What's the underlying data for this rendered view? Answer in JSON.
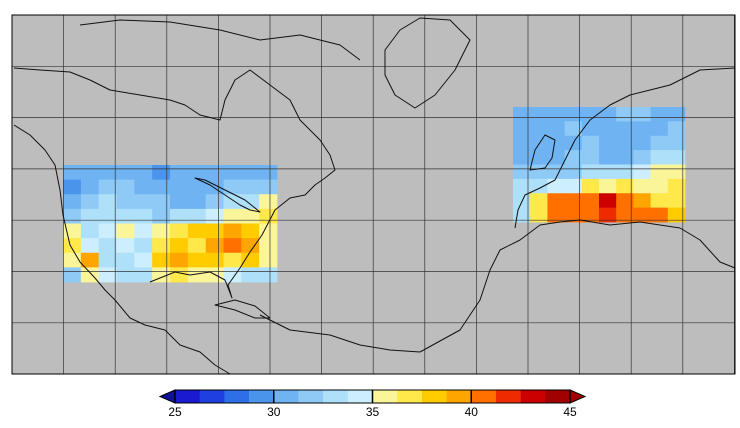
{
  "map": {
    "type": "gridded-map",
    "colorbar": {
      "range": [
        25,
        45
      ],
      "ticks": [
        25,
        30,
        35,
        40,
        45
      ],
      "colors": [
        "#1a1ad0",
        "#1f3fe0",
        "#2e6ee6",
        "#4a94ec",
        "#6fb3f2",
        "#8fcaf6",
        "#aee0fa",
        "#cdeefc",
        "#fbf59a",
        "#ffe84a",
        "#ffcc00",
        "#ffa500",
        "#ff7000",
        "#ee2a00",
        "#cc0000",
        "#a00000"
      ],
      "under_color": "#1010a0",
      "over_color": "#a00000"
    },
    "background": "#bdbdbd",
    "regions": [
      {
        "values": [
          [
            31,
            30,
            31,
            30,
            30,
            29,
            30,
            30,
            31,
            31,
            31,
            31
          ],
          [
            29,
            31,
            32,
            32,
            31,
            31,
            31,
            31,
            31,
            32,
            32,
            32
          ],
          [
            31,
            32,
            33,
            32,
            32,
            32,
            31,
            31,
            32,
            33,
            33,
            35
          ],
          [
            32,
            33,
            33,
            33,
            33,
            32,
            33,
            33,
            34,
            35,
            36,
            37
          ],
          [
            35,
            33,
            34,
            36,
            34,
            36,
            37,
            38,
            38,
            39,
            38,
            36
          ],
          [
            37,
            34,
            33,
            34,
            33,
            37,
            38,
            37,
            39,
            40,
            39,
            36
          ],
          [
            36,
            39,
            33,
            33,
            34,
            38,
            39,
            38,
            38,
            37,
            38,
            35
          ],
          [
            32,
            35,
            34,
            33,
            33,
            36,
            37,
            35,
            35,
            34,
            33,
            33
          ]
        ]
      },
      {
        "values": [
          [
            31,
            31,
            31,
            31,
            31,
            31,
            32,
            32,
            31,
            31
          ],
          [
            31,
            30,
            31,
            32,
            31,
            31,
            31,
            30,
            31,
            32
          ],
          [
            31,
            30,
            31,
            31,
            32,
            31,
            31,
            31,
            32,
            32
          ],
          [
            31,
            31,
            31,
            32,
            32,
            30,
            31,
            32,
            33,
            33
          ],
          [
            32,
            32,
            32,
            32,
            33,
            33,
            33,
            34,
            35,
            35
          ],
          [
            33,
            33,
            34,
            34,
            37,
            36,
            37,
            35,
            36,
            37
          ],
          [
            33,
            37,
            40,
            40,
            41,
            43,
            41,
            39,
            37,
            37
          ],
          [
            33,
            37,
            41,
            40,
            40,
            42,
            41,
            40,
            40,
            38
          ]
        ]
      }
    ]
  }
}
